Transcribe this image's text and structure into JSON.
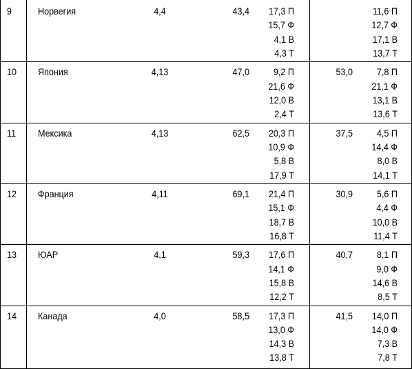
{
  "table": {
    "rows": [
      {
        "num": "9",
        "country": "Норвегия",
        "value": "4,4",
        "share1": "43,4",
        "detail1": [
          "17,3 П",
          "15,7 Ф",
          "4,1 В",
          "4,3 Т"
        ],
        "share2": null,
        "detail2": [
          "11,6 П",
          "12,7 Ф",
          "17,1 В",
          "13,7 Т"
        ]
      },
      {
        "num": "10",
        "country": "Япония",
        "value": "4,13",
        "share1": "47,0",
        "detail1": [
          "9,2 П",
          "21,6 Ф",
          "12,0 В",
          "2,4 Т"
        ],
        "share2": "53,0",
        "detail2": [
          "7,8 П",
          "21,1 Ф",
          "13,1 В",
          "13,6 Т"
        ]
      },
      {
        "num": "11",
        "country": "Мексика",
        "value": "4,13",
        "share1": "62,5",
        "detail1": [
          "20,3 П",
          "10,9 Ф",
          "5,8 В",
          "17,9 Т"
        ],
        "share2": "37,5",
        "detail2": [
          "4,5 П",
          "14,4 Ф",
          "8,0 В",
          "14,1 Т"
        ]
      },
      {
        "num": "12",
        "country": "Франция",
        "value": "4,11",
        "share1": "69,1",
        "detail1": [
          "21,4 П",
          "15,1 Ф",
          "18,7 В",
          "16,8 Т"
        ],
        "share2": "30,9",
        "detail2": [
          "5,6 П",
          "4,4 Ф",
          "10,0 В",
          "11,4 Т"
        ]
      },
      {
        "num": "13",
        "country": "ЮАР",
        "value": "4,1",
        "share1": "59,3",
        "detail1": [
          "17,6 П",
          "14,1 Ф",
          "15,8 В",
          "12,2 Т"
        ],
        "share2": "40,7",
        "detail2": [
          "8,1 П",
          "9,0 Ф",
          "14,6 В",
          "8,5 Т"
        ]
      },
      {
        "num": "14",
        "country": "Канада",
        "value": "4,0",
        "share1": "58,5",
        "detail1": [
          "17,3 П",
          "13,0 Ф",
          "14,3 В",
          "13,8 Т"
        ],
        "share2": "41,5",
        "detail2": [
          "14,0 П",
          "14,0 Ф",
          "7,3 В",
          "7,8 Т"
        ]
      }
    ]
  }
}
